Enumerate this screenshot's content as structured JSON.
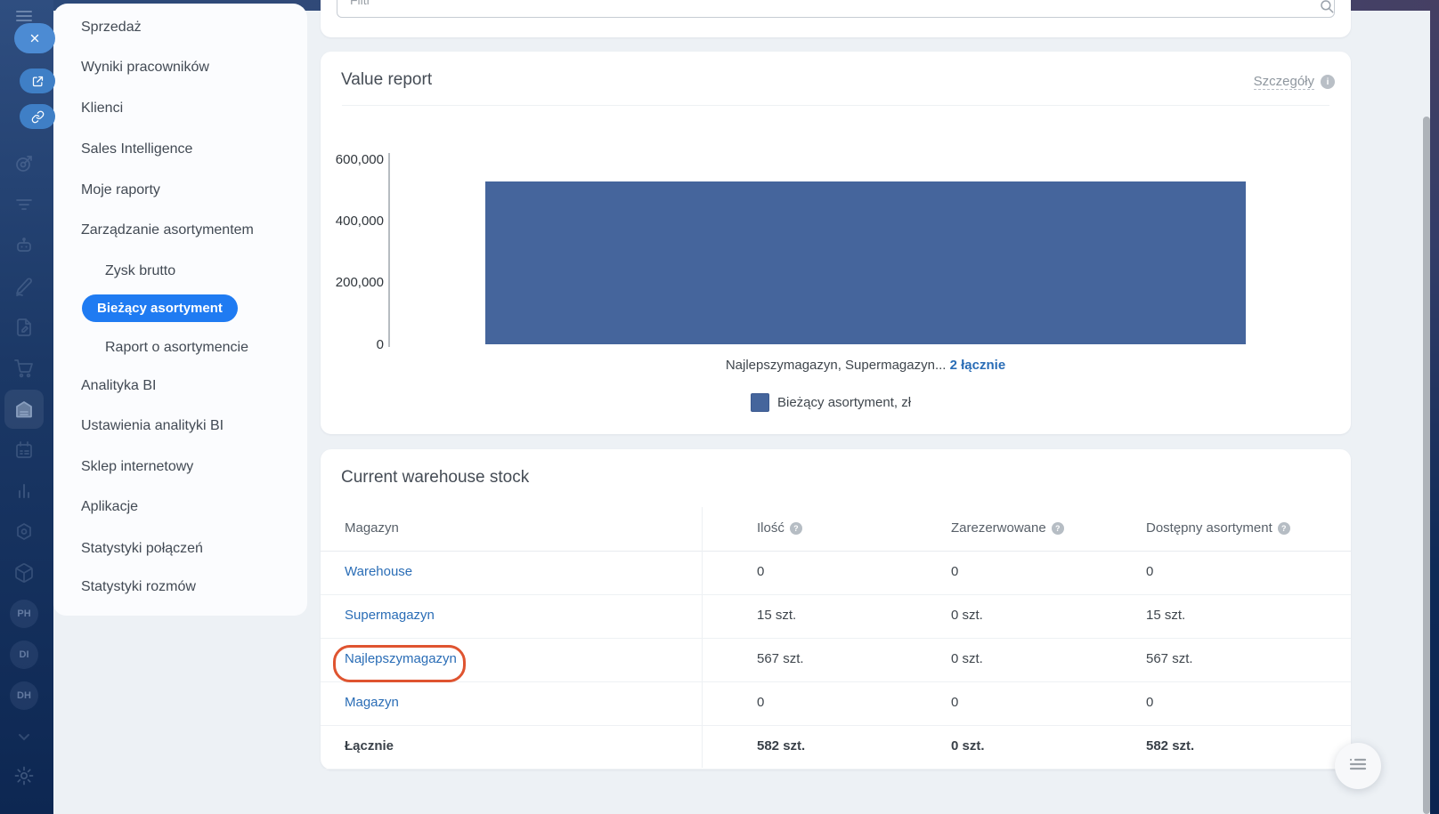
{
  "filter": {
    "placeholder": "Filtr"
  },
  "rail": {
    "icons": [
      "menu",
      "close",
      "open-in-new",
      "copy-link",
      "target",
      "funnel",
      "robot",
      "signature",
      "document-edit",
      "shopping-cart",
      "warehouse",
      "planner",
      "bar-chart",
      "hexagon",
      "package",
      "chevron-down",
      "settings-gear"
    ],
    "avatars": [
      "PH",
      "DI",
      "DH"
    ]
  },
  "sidebar": {
    "items": [
      {
        "label": "Sprzedaż"
      },
      {
        "label": "Wyniki pracowników"
      },
      {
        "label": "Klienci"
      },
      {
        "label": "Sales Intelligence"
      },
      {
        "label": "Moje raporty"
      },
      {
        "label": "Zarządzanie asortymentem"
      },
      {
        "label": "Zysk brutto",
        "indent": true
      },
      {
        "label": "Bieżący asortyment",
        "indent": true,
        "active": true
      },
      {
        "label": "Raport o asortymencie",
        "indent": true
      },
      {
        "label": "Analityka BI"
      },
      {
        "label": "Ustawienia analityki BI"
      },
      {
        "label": "Sklep internetowy"
      },
      {
        "label": "Aplikacje"
      },
      {
        "label": "Statystyki połączeń"
      },
      {
        "label": "Statystyki rozmów"
      }
    ]
  },
  "value_report": {
    "title": "Value report",
    "details_link": "Szczegóły",
    "caption_text": "Najlepszymagazyn, Supermagazyn... ",
    "caption_link": "2 łącznie",
    "legend_label": "Bieżący asortyment, zł"
  },
  "chart_data": {
    "type": "bar",
    "title": "Value report",
    "categories": [
      "Najlepszymagazyn, Supermagazyn… (2 łącznie)"
    ],
    "values": [
      527000
    ],
    "series_name": "Bieżący asortyment, zł",
    "ylim": [
      0,
      600000
    ],
    "yticks": [
      "0",
      "200,000",
      "400,000",
      "600,000"
    ],
    "bar_color": "#45659c",
    "legend_position": "bottom",
    "grid": false
  },
  "stock_table": {
    "title": "Current warehouse stock",
    "columns": [
      {
        "label": "Magazyn",
        "help": false
      },
      {
        "label": "Ilość",
        "help": true
      },
      {
        "label": "Zarezerwowane",
        "help": true
      },
      {
        "label": "Dostępny asortyment",
        "help": true
      }
    ],
    "rows": [
      {
        "name": "Warehouse",
        "qty": "0",
        "reserved": "0",
        "available": "0"
      },
      {
        "name": "Supermagazyn",
        "qty": "15 szt.",
        "reserved": "0 szt.",
        "available": "15 szt."
      },
      {
        "name": "Najlepszymagazyn",
        "qty": "567 szt.",
        "reserved": "0 szt.",
        "available": "567 szt.",
        "annotated": true
      },
      {
        "name": "Magazyn",
        "qty": "0",
        "reserved": "0",
        "available": "0"
      },
      {
        "name": "Łącznie",
        "qty": "582 szt.",
        "reserved": "0 szt.",
        "available": "582 szt.",
        "total": true
      }
    ]
  },
  "colors": {
    "accent_blue": "#1f7bf2",
    "bar_blue": "#45659c",
    "link_blue": "#2a6db6",
    "annotation_orange": "#df5430",
    "rail_top": "#2f4e80",
    "rail_bottom": "#0d2752",
    "content_bg": "#edf1f5"
  }
}
